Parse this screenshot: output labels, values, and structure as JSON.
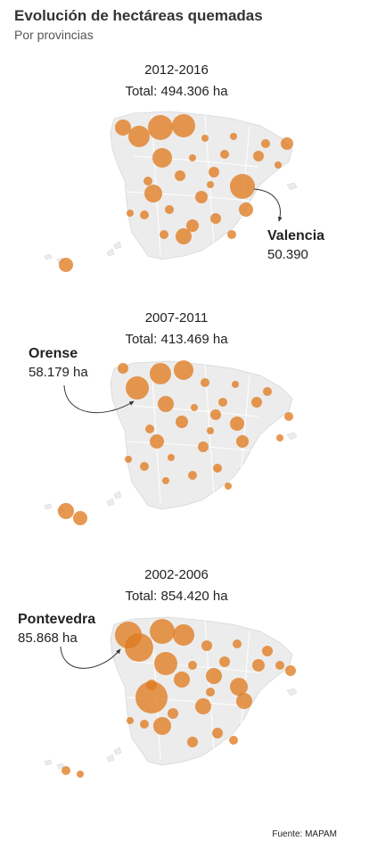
{
  "header": {
    "title": "Evolución de hectáreas quemadas",
    "subtitle": "Por provincias"
  },
  "colors": {
    "bubble": "#e07b20",
    "land": "#ececec",
    "border": "#ffffff",
    "text": "#222222"
  },
  "maps": [
    {
      "period": "2012-2016",
      "total": "Total: 494.306 ha",
      "highlight": {
        "name": "Valencia",
        "value": "50.390"
      }
    },
    {
      "period": "2007-2011",
      "total": "Total: 413.469 ha",
      "highlight": {
        "name": "Orense",
        "value": "58.179 ha"
      }
    },
    {
      "period": "2002-2006",
      "total": "Total: 854.420 ha",
      "highlight": {
        "name": "Pontevedra",
        "value": "85.868 ha"
      }
    }
  ],
  "footer": {
    "source": "Fuente: MAPAM"
  }
}
